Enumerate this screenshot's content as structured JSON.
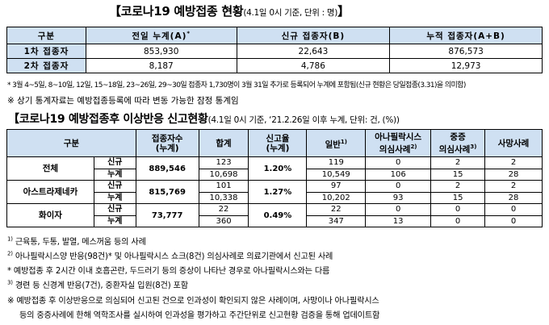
{
  "title1": {
    "main": "【코로나19 예방접종 현황",
    "sub": "(4.1일 0시 기준, 단위 : 명)",
    "close": "】"
  },
  "table1": {
    "headers": [
      "구분",
      "전일 누계(A)",
      "*",
      "신규 접종자(B)",
      "누적 접종자(A+B)"
    ],
    "rows": [
      {
        "label": "1차 접종자",
        "cumulative": "853,930",
        "new": "22,643",
        "total": "876,573"
      },
      {
        "label": "2차 접종자",
        "cumulative": "8,187",
        "new": "4,786",
        "total": "12,973"
      }
    ]
  },
  "note_star": "* 3월 4~5일, 8~10일, 12일, 15~18일, 23~26일, 29~30일 접종자 1,730명이 3월 31일 추가로 등록되어 누계에 포함됨(신규 현황은 당일접종(3.31)을 의미함)",
  "note_ref": "※ 상기 통계자료는 예방접종등록에 따라 변동 가능한 잠정 통계임",
  "title2": {
    "main": "【코로나19 예방접종후 이상반응 신고현황",
    "sub": "(4.1일 0시 기준, ‘21.2.26일 이후 누계, 단위: 건, (%))"
  },
  "table2": {
    "headers": {
      "category": "구분",
      "vaccinated_l1": "접종자수",
      "vaccinated_l2": "(누계)",
      "total": "합계",
      "rate_l1": "신고율",
      "rate_l2": "(누계)",
      "general": "일반",
      "general_sup": "1)",
      "ana_l1": "아나필락시스",
      "ana_l2": "의심사례",
      "ana_sup": "2)",
      "severe_l1": "중증",
      "severe_l2": "의심사례",
      "severe_sup": "3)",
      "death": "사망사례"
    },
    "groups": [
      {
        "name": "전체",
        "vaccinated": "889,546",
        "rate": "1.20%",
        "new": {
          "label": "신규",
          "total": "123",
          "general": "119",
          "ana": "0",
          "severe": "2",
          "death": "2"
        },
        "cum": {
          "label": "누계",
          "total": "10,698",
          "general": "10,549",
          "ana": "106",
          "severe": "15",
          "death": "28"
        }
      },
      {
        "name": "아스트라제네카",
        "vaccinated": "815,769",
        "rate": "1.27%",
        "new": {
          "label": "신규",
          "total": "101",
          "general": "97",
          "ana": "0",
          "severe": "2",
          "death": "2"
        },
        "cum": {
          "label": "누계",
          "total": "10,338",
          "general": "10,202",
          "ana": "93",
          "severe": "15",
          "death": "28"
        }
      },
      {
        "name": "화이자",
        "vaccinated": "73,777",
        "rate": "0.49%",
        "new": {
          "label": "신규",
          "total": "22",
          "general": "22",
          "ana": "0",
          "severe": "0",
          "death": "0"
        },
        "cum": {
          "label": "누계",
          "total": "360",
          "general": "347",
          "ana": "13",
          "severe": "0",
          "death": "0"
        }
      }
    ]
  },
  "footnotes": {
    "f1_mark": "1)",
    "f1": "근육통, 두통, 발열, 메스꺼움 등의 사례",
    "f2_mark": "2)",
    "f2": "아나필락시스양 반응(98건)* 및 아나필락시스 쇼크(8건) 의심사례로 의료기관에서 신고된 사례",
    "f2_star": "* 예방접종 후 2시간 이내 호흡곤란, 두드러기 등의 증상이 나타난 경우로 아나필락시스와는 다름",
    "f3_mark": "3)",
    "f3": "경련 등 신경계 반응(7건), 중환자실 입원(8건) 포함",
    "ref1": "※ 예방접종 후 이상반응으로 의심되어 신고된 건으로 인과성이 확인되지 않은 사례이며, 사망이나 아나필락시스",
    "ref2": "등의 중증사례에 한해 역학조사를 실시하여 인과성을 평가하고 주간단위로 신고현황 검증을 통해 업데이트함"
  }
}
